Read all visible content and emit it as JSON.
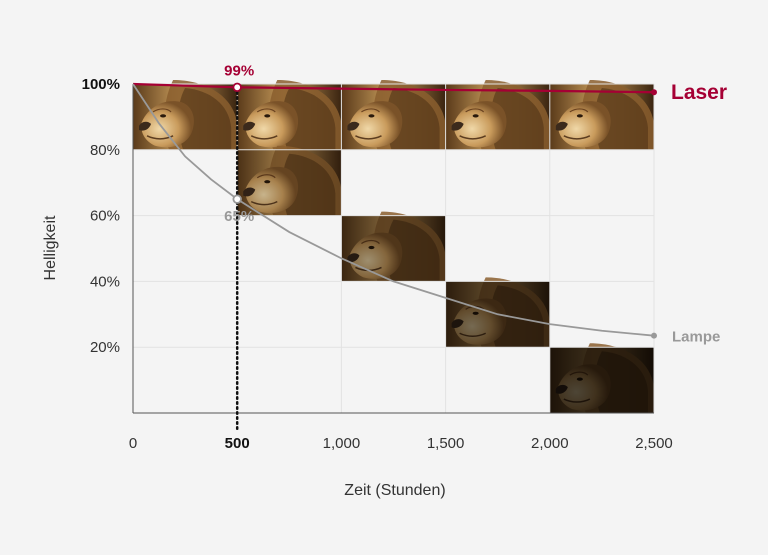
{
  "chart_data": {
    "type": "line",
    "title": "",
    "xlabel": "Zeit (Stunden)",
    "ylabel": "Helligkeit",
    "xlim": [
      0,
      2500
    ],
    "ylim": [
      0,
      100
    ],
    "x_ticks": [
      0,
      500,
      1000,
      1500,
      2000,
      2500
    ],
    "x_tick_labels": [
      "0",
      "500",
      "1,000",
      "1,500",
      "2,000",
      "2,500"
    ],
    "x_tick_bold": [
      "500"
    ],
    "y_ticks": [
      20,
      40,
      60,
      80,
      100
    ],
    "y_tick_labels": [
      "20%",
      "40%",
      "60%",
      "80%",
      "100%"
    ],
    "y_tick_bold": [
      "100%"
    ],
    "grid": true,
    "series": [
      {
        "name": "Laser",
        "color": "#a50034",
        "x": [
          0,
          500,
          1000,
          1500,
          2000,
          2500
        ],
        "values": [
          100,
          99,
          98.6,
          98.2,
          97.9,
          97.5
        ]
      },
      {
        "name": "Lampe",
        "color": "#999999",
        "x": [
          0,
          125,
          250,
          375,
          500,
          750,
          1000,
          1250,
          1500,
          1750,
          2000,
          2250,
          2500
        ],
        "values": [
          100,
          88,
          78,
          71,
          65,
          55,
          47,
          40,
          35,
          30,
          27,
          25,
          23.5
        ]
      }
    ],
    "annotations": [
      {
        "text": "99%",
        "x": 500,
        "y": 99,
        "color": "#a50034"
      },
      {
        "text": "65%",
        "x": 500,
        "y": 65,
        "color": "#999999"
      }
    ],
    "brightness_tiles": [
      {
        "x_start": 0,
        "x_end": 500,
        "y_top": 100,
        "y_bottom": 80,
        "brightness": 1.0
      },
      {
        "x_start": 500,
        "x_end": 1000,
        "y_top": 100,
        "y_bottom": 80,
        "brightness": 1.0
      },
      {
        "x_start": 1000,
        "x_end": 1500,
        "y_top": 100,
        "y_bottom": 80,
        "brightness": 1.0
      },
      {
        "x_start": 1500,
        "x_end": 2000,
        "y_top": 100,
        "y_bottom": 80,
        "brightness": 1.0
      },
      {
        "x_start": 2000,
        "x_end": 2500,
        "y_top": 100,
        "y_bottom": 80,
        "brightness": 1.0
      },
      {
        "x_start": 500,
        "x_end": 1000,
        "y_top": 80,
        "y_bottom": 60,
        "brightness": 0.8
      },
      {
        "x_start": 1000,
        "x_end": 1500,
        "y_top": 60,
        "y_bottom": 40,
        "brightness": 0.6
      },
      {
        "x_start": 1500,
        "x_end": 2000,
        "y_top": 40,
        "y_bottom": 20,
        "brightness": 0.4
      },
      {
        "x_start": 2000,
        "x_end": 2500,
        "y_top": 20,
        "y_bottom": 0,
        "brightness": 0.2
      }
    ]
  }
}
